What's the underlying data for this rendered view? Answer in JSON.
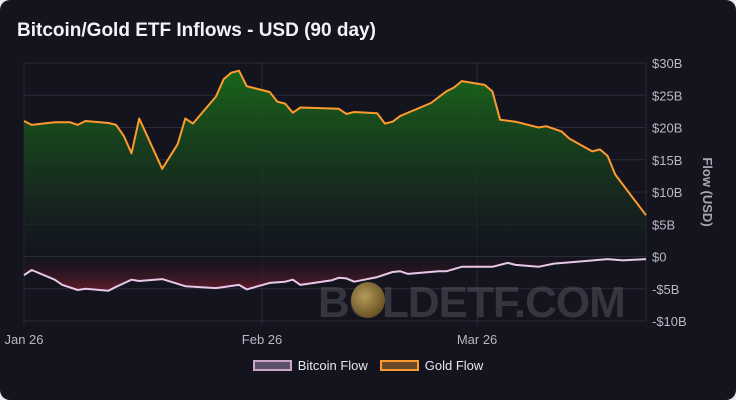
{
  "title": "Bitcoin/Gold ETF Inflows - USD (90 day)",
  "watermark": "BOLDETF.COM",
  "chart_data": {
    "type": "area",
    "title": "Bitcoin/Gold ETF Inflows - USD (90 day)",
    "xlabel": "",
    "ylabel": "Flow (USD)",
    "ylim": [
      -10,
      30
    ],
    "x_unit": "days since Jan 26",
    "xlim": [
      0,
      81
    ],
    "x_ticks": [
      {
        "day": 0,
        "label": "Jan 26"
      },
      {
        "day": 31,
        "label": "Feb 26"
      },
      {
        "day": 59,
        "label": "Mar 26"
      }
    ],
    "y_ticks": [
      {
        "v": 30,
        "label": "$30B"
      },
      {
        "v": 25,
        "label": "$25B"
      },
      {
        "v": 20,
        "label": "$20B"
      },
      {
        "v": 15,
        "label": "$15B"
      },
      {
        "v": 10,
        "label": "$10B"
      },
      {
        "v": 5,
        "label": "$5B"
      },
      {
        "v": 0,
        "label": "$0"
      },
      {
        "v": -5,
        "label": "-$5B"
      },
      {
        "v": -10,
        "label": "-$10B"
      }
    ],
    "legend_position": "bottom",
    "series": [
      {
        "name": "Bitcoin Flow",
        "color": "#e8c8e8",
        "fill": "#5a2030",
        "x": [
          0,
          1,
          4,
          5,
          7,
          8,
          11,
          12,
          14,
          15,
          18,
          21,
          25,
          28,
          29,
          32,
          34,
          35,
          36,
          40,
          41,
          42,
          43,
          46,
          48,
          49,
          50,
          54,
          55,
          57,
          61,
          63,
          64,
          67,
          69,
          72,
          76,
          78,
          81
        ],
        "values": [
          -2.9,
          -2.1,
          -3.6,
          -4.4,
          -5.2,
          -5.0,
          -5.3,
          -4.7,
          -3.6,
          -3.8,
          -3.5,
          -4.6,
          -4.9,
          -4.4,
          -5.1,
          -4.1,
          -3.9,
          -3.6,
          -4.4,
          -3.7,
          -3.3,
          -3.4,
          -3.9,
          -3.2,
          -2.4,
          -2.3,
          -2.7,
          -2.3,
          -2.3,
          -1.6,
          -1.6,
          -1.0,
          -1.3,
          -1.6,
          -1.1,
          -0.8,
          -0.4,
          -0.6,
          -0.4
        ]
      },
      {
        "name": "Gold Flow",
        "color": "#ff9a2e",
        "fill": "#1f6b1f",
        "x": [
          0,
          1,
          4,
          6,
          7,
          8,
          11,
          12,
          13,
          14,
          15,
          18,
          20,
          21,
          22,
          25,
          26,
          27,
          28,
          29,
          32,
          33,
          34,
          35,
          36,
          41,
          42,
          43,
          46,
          47,
          48,
          49,
          53,
          55,
          56,
          57,
          60,
          61,
          62,
          64,
          67,
          68,
          70,
          71,
          74,
          75,
          76,
          77,
          81
        ],
        "values": [
          21.0,
          20.4,
          20.8,
          20.8,
          20.4,
          21.0,
          20.7,
          20.4,
          18.7,
          16.0,
          21.4,
          13.6,
          17.4,
          21.4,
          20.6,
          24.8,
          27.5,
          28.5,
          28.8,
          26.4,
          25.5,
          24.0,
          23.7,
          22.3,
          23.1,
          22.9,
          22.1,
          22.4,
          22.2,
          20.6,
          20.9,
          21.8,
          23.8,
          25.6,
          26.2,
          27.2,
          26.6,
          25.6,
          21.2,
          20.9,
          20.0,
          20.2,
          19.4,
          18.3,
          16.3,
          16.6,
          15.6,
          12.7,
          6.4
        ]
      }
    ]
  }
}
